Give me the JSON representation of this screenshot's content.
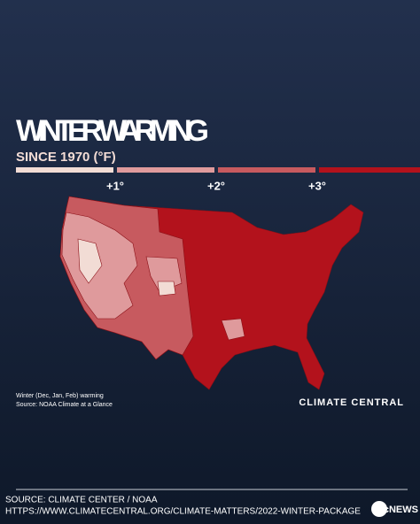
{
  "header": {
    "title": "WINTER WARMING",
    "subtitle": "SINCE 1970 (°F)"
  },
  "legend": {
    "colors": [
      "#f2dcd5",
      "#df9a9c",
      "#c75a5f",
      "#b3121c"
    ],
    "labels": [
      "+1°",
      "+2°",
      "+3°"
    ]
  },
  "notes": [
    "Winter (Dec, Jan, Feb) warming",
    "Source: NOAA Climate at a Glance"
  ],
  "brand": "CLIMATE CENTRAL",
  "footer": {
    "source": "SOURCE: CLIMATE CENTER / NOAA",
    "url": "HTTPS://WWW.CLIMATECENTRAL.ORG/CLIMATE-MATTERS/2022-WINTER-PACKAGE",
    "logo": "abcNEWS"
  }
}
